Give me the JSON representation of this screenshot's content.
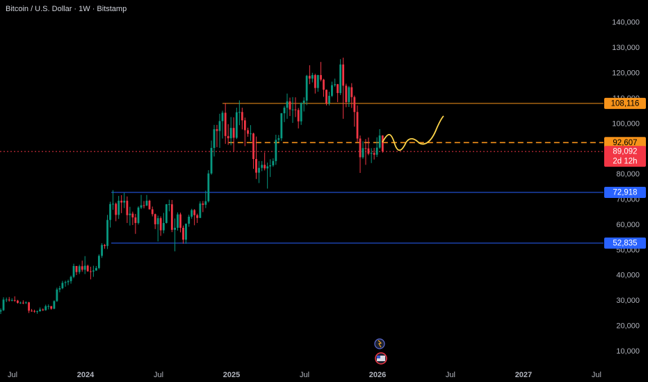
{
  "chart_data": {
    "type": "candlestick",
    "title": "Bitcoin / U.S. Dollar · 1W · Bitstamp",
    "up_color": "#089981",
    "down_color": "#f23645",
    "xlim": [
      2023.414,
      2027.548
    ],
    "xticks": [
      {
        "value": 2023.5,
        "label": "Jul"
      },
      2024,
      {
        "value": 2024.5,
        "label": "Jul"
      },
      2025,
      {
        "value": 2025.5,
        "label": "Jul"
      },
      2026,
      {
        "value": 2026.5,
        "label": "Jul"
      },
      2027,
      {
        "value": 2027.5,
        "label": "Jul"
      }
    ],
    "ylim": [
      3400,
      149000
    ],
    "yticks": [
      {
        "value": 10000,
        "label": "10,000"
      },
      {
        "value": 20000,
        "label": "20,000"
      },
      {
        "value": 30000,
        "label": "30,000"
      },
      {
        "value": 40000,
        "label": "40,000"
      },
      {
        "value": 50000,
        "label": "50,000"
      },
      {
        "value": 60000,
        "label": "60,000"
      },
      {
        "value": 70000,
        "label": "70,000"
      },
      {
        "value": 80000,
        "label": "80,000"
      },
      {
        "value": 90000,
        "label": "90,000"
      },
      {
        "value": 100000,
        "label": "100,000"
      },
      {
        "value": 110000,
        "label": "110,000"
      },
      {
        "value": 120000,
        "label": "120,000"
      },
      {
        "value": 130000,
        "label": "130,000"
      },
      {
        "value": 140000,
        "label": "140,000"
      }
    ],
    "x": [
      2023.4,
      2023.419,
      2023.438,
      2023.458,
      2023.477,
      2023.496,
      2023.515,
      2023.535,
      2023.554,
      2023.573,
      2023.592,
      2023.612,
      2023.631,
      2023.65,
      2023.669,
      2023.688,
      2023.708,
      2023.727,
      2023.746,
      2023.765,
      2023.785,
      2023.804,
      2023.823,
      2023.842,
      2023.862,
      2023.881,
      2023.9,
      2023.919,
      2023.938,
      2023.958,
      2023.977,
      2023.996,
      2024.015,
      2024.035,
      2024.054,
      2024.073,
      2024.092,
      2024.112,
      2024.131,
      2024.15,
      2024.169,
      2024.188,
      2024.208,
      2024.227,
      2024.246,
      2024.265,
      2024.285,
      2024.304,
      2024.323,
      2024.342,
      2024.362,
      2024.381,
      2024.4,
      2024.419,
      2024.438,
      2024.458,
      2024.477,
      2024.496,
      2024.515,
      2024.535,
      2024.554,
      2024.573,
      2024.592,
      2024.612,
      2024.631,
      2024.65,
      2024.669,
      2024.688,
      2024.708,
      2024.727,
      2024.746,
      2024.765,
      2024.785,
      2024.804,
      2024.823,
      2024.842,
      2024.862,
      2024.881,
      2024.9,
      2024.919,
      2024.938,
      2024.958,
      2024.977,
      2024.996,
      2025.015,
      2025.035,
      2025.054,
      2025.073,
      2025.092,
      2025.112,
      2025.131,
      2025.15,
      2025.169,
      2025.188,
      2025.208,
      2025.227,
      2025.246,
      2025.265,
      2025.285,
      2025.304,
      2025.323,
      2025.342,
      2025.362,
      2025.381,
      2025.4,
      2025.419,
      2025.438,
      2025.458,
      2025.477,
      2025.496,
      2025.515,
      2025.535,
      2025.554,
      2025.573,
      2025.592,
      2025.612,
      2025.631,
      2025.65,
      2025.669,
      2025.688,
      2025.708,
      2025.727,
      2025.746,
      2025.765,
      2025.785,
      2025.804,
      2025.823,
      2025.842,
      2025.862,
      2025.881,
      2025.9,
      2025.919,
      2025.938,
      2025.958,
      2025.977,
      2025.996,
      2026.015,
      2026.035
    ],
    "open": [
      27000,
      25800,
      26300,
      30500,
      30500,
      30200,
      30300,
      30100,
      29200,
      29300,
      29100,
      29400,
      26100,
      26000,
      25800,
      25900,
      26600,
      26300,
      27900,
      27900,
      26900,
      29900,
      34500,
      35000,
      37100,
      37400,
      37800,
      39500,
      43800,
      41400,
      43700,
      42300,
      43900,
      41700,
      41600,
      42000,
      43000,
      47800,
      52100,
      51700,
      62000,
      68300,
      68400,
      64000,
      69600,
      68900,
      69600,
      63900,
      64500,
      63000,
      60800,
      66900,
      67800,
      67700,
      69600,
      66200,
      64300,
      60300,
      62700,
      57900,
      60800,
      68200,
      68200,
      58100,
      58900,
      64200,
      58900,
      54200,
      60500,
      63300,
      65900,
      63900,
      62800,
      68500,
      68000,
      69400,
      80400,
      90500,
      97900,
      97200,
      101100,
      104400,
      95200,
      94300,
      98400,
      94500,
      104600,
      104700,
      101400,
      97500,
      96100,
      96200,
      86100,
      80700,
      82600,
      83800,
      82400,
      83200,
      83600,
      85300,
      93700,
      94300,
      104200,
      106400,
      108900,
      105700,
      105700,
      105500,
      101000,
      108300,
      109200,
      119000,
      117900,
      119300,
      114200,
      119300,
      117500,
      113500,
      108200,
      111100,
      115300,
      115700,
      112200,
      123500,
      115100,
      108600,
      114500,
      110600,
      104700,
      94200,
      86800,
      90400,
      90300,
      88200,
      88500,
      87800,
      90600,
      95400
    ],
    "high": [
      27500,
      27000,
      31400,
      31300,
      31500,
      31000,
      31800,
      30400,
      29700,
      30200,
      29800,
      29600,
      26800,
      26500,
      26200,
      27400,
      27000,
      28500,
      28600,
      28000,
      30200,
      35200,
      35900,
      37900,
      38000,
      38400,
      40000,
      44700,
      43500,
      44300,
      45900,
      47700,
      44300,
      43500,
      43900,
      43800,
      48400,
      52800,
      52500,
      64000,
      69200,
      73800,
      68900,
      71500,
      71800,
      72700,
      71300,
      67200,
      65300,
      64400,
      67400,
      71900,
      69500,
      71900,
      70000,
      67300,
      64500,
      63700,
      63400,
      64800,
      68300,
      70000,
      69900,
      62600,
      65000,
      64900,
      59800,
      60600,
      64100,
      66400,
      66300,
      64500,
      69400,
      69500,
      73600,
      81700,
      93400,
      99600,
      99600,
      104000,
      105200,
      108300,
      99900,
      102700,
      102600,
      106400,
      109300,
      106400,
      102500,
      98500,
      99500,
      96500,
      95000,
      85300,
      85300,
      88700,
      84700,
      86000,
      86400,
      95700,
      95600,
      104300,
      107100,
      112000,
      110400,
      110600,
      110500,
      106300,
      108500,
      110500,
      119400,
      123200,
      120200,
      119800,
      119400,
      124500,
      117800,
      113600,
      112700,
      116700,
      117900,
      115800,
      125600,
      126200,
      115900,
      115000,
      116100,
      111200,
      107300,
      95400,
      93100,
      94000,
      94600,
      90400,
      90500,
      94700,
      97900,
      95500
    ],
    "low": [
      25000,
      24800,
      26000,
      29500,
      29700,
      29800,
      29600,
      28900,
      28800,
      28700,
      28800,
      25200,
      25700,
      25300,
      24900,
      25700,
      26000,
      26100,
      26600,
      26500,
      26700,
      29600,
      33400,
      34600,
      35600,
      36200,
      36800,
      39000,
      40200,
      40600,
      41500,
      40600,
      41500,
      38500,
      39500,
      41900,
      42500,
      47000,
      50600,
      50500,
      59000,
      66000,
      61500,
      62400,
      64700,
      66700,
      60800,
      59800,
      60000,
      56500,
      60200,
      66300,
      66600,
      67500,
      66100,
      63400,
      58400,
      53500,
      55700,
      56700,
      60600,
      65400,
      57200,
      49600,
      57800,
      57100,
      52600,
      52600,
      59300,
      62500,
      59900,
      60800,
      62800,
      65100,
      66700,
      68900,
      79900,
      87100,
      90800,
      90500,
      94200,
      92100,
      91700,
      91500,
      89200,
      94000,
      99500,
      97800,
      91200,
      94900,
      93300,
      82200,
      78200,
      76600,
      81300,
      81600,
      74400,
      79000,
      83000,
      83800,
      92800,
      93300,
      100700,
      102000,
      103100,
      100400,
      102700,
      98200,
      99600,
      104900,
      107400,
      115700,
      116400,
      112000,
      112700,
      116800,
      110700,
      107300,
      107300,
      110600,
      114700,
      108600,
      111400,
      102000,
      106600,
      106700,
      106300,
      98900,
      92900,
      80600,
      86200,
      83800,
      87600,
      84500,
      85900,
      86900,
      90100,
      88600
    ],
    "close": [
      25800,
      26300,
      30500,
      30500,
      30200,
      30300,
      30100,
      29200,
      29300,
      29100,
      29400,
      26100,
      26000,
      25800,
      25900,
      26600,
      26300,
      27900,
      27900,
      26900,
      29900,
      34500,
      35000,
      37100,
      37400,
      37800,
      39500,
      43800,
      41400,
      43700,
      42300,
      43900,
      41700,
      41600,
      42000,
      43000,
      47800,
      52100,
      51700,
      62000,
      68300,
      68400,
      64000,
      69600,
      68900,
      69600,
      63900,
      64500,
      63000,
      60800,
      66900,
      67800,
      67700,
      69600,
      66200,
      64300,
      60300,
      62700,
      57900,
      60800,
      68200,
      68200,
      58100,
      58900,
      64200,
      58900,
      54200,
      60500,
      63300,
      65900,
      63900,
      62800,
      68500,
      68000,
      69400,
      80400,
      90500,
      97900,
      97200,
      101100,
      104400,
      95200,
      94300,
      98400,
      94500,
      104600,
      104700,
      101400,
      97500,
      96100,
      96200,
      86100,
      80700,
      82600,
      83800,
      82400,
      83200,
      83600,
      85300,
      93700,
      94300,
      104200,
      106400,
      108900,
      105700,
      105700,
      105500,
      101000,
      108300,
      109200,
      119000,
      117900,
      119300,
      114200,
      119300,
      117500,
      113500,
      108200,
      111100,
      115300,
      115700,
      112200,
      123500,
      115100,
      108600,
      114500,
      110600,
      104700,
      94200,
      86800,
      90400,
      90300,
      88200,
      88500,
      87800,
      90600,
      95400,
      89092
    ],
    "price_lines": [
      {
        "value": 108116,
        "label": "108,116",
        "color": "#f7931a",
        "text_color": "#000000",
        "style": "solid",
        "from": 2024.938
      },
      {
        "value": 92607,
        "label": "92,607",
        "color": "#f7931a",
        "text_color": "#000000",
        "style": "dashed",
        "from": 2024.98
      },
      {
        "value": 89092,
        "label": "89,092",
        "countdown": "2d 12h",
        "color": "#f23645",
        "text_color": "#ffffff",
        "style": "dotted",
        "from": 2023.414
      },
      {
        "value": 72918,
        "label": "72,918",
        "color": "#2962ff",
        "text_color": "#ffffff",
        "style": "solid",
        "from": 2024.176
      },
      {
        "value": 52835,
        "label": "52,835",
        "color": "#2962ff",
        "text_color": "#ffffff",
        "style": "solid",
        "from": 2024.176
      }
    ]
  }
}
